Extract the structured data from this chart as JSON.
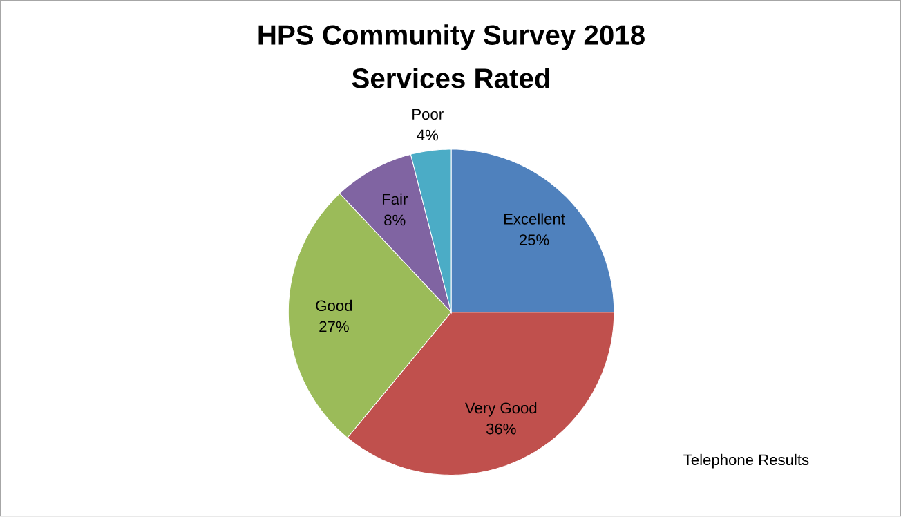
{
  "chart_data": {
    "type": "pie",
    "title": "HPS Community Survey 2018",
    "subtitle": "Services Rated",
    "categories": [
      "Excellent",
      "Very Good",
      "Good",
      "Fair",
      "Poor"
    ],
    "values": [
      25,
      36,
      27,
      8,
      4
    ],
    "value_labels": [
      "25%",
      "36%",
      "27%",
      "8%",
      "4%"
    ],
    "colors": [
      "#4f81bd",
      "#c0504d",
      "#9bbb59",
      "#8064a2",
      "#4bacc6"
    ],
    "annotations": [
      "Telephone Results"
    ]
  }
}
